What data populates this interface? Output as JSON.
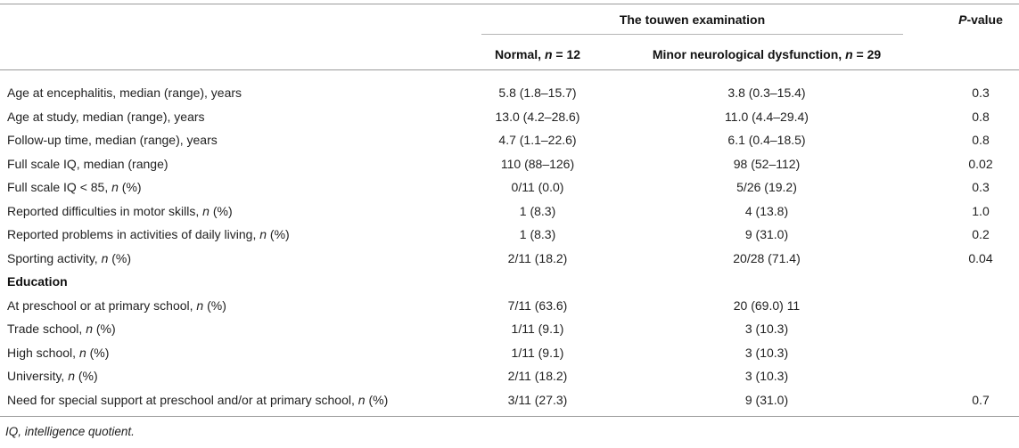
{
  "header": {
    "group_label": "The touwen examination",
    "pvalue_label": "P-value",
    "col_normal": "Normal, n = 12",
    "col_minor": "Minor neurological dysfunction, n = 29"
  },
  "rows": [
    {
      "label": "Age at encephalitis, median (range), years",
      "normal": "5.8 (1.8–15.7)",
      "minor": "3.8 (0.3–15.4)",
      "p": "0.3"
    },
    {
      "label": "Age at study, median (range), years",
      "normal": "13.0 (4.2–28.6)",
      "minor": "11.0 (4.4–29.4)",
      "p": "0.8"
    },
    {
      "label": "Follow-up time, median (range), years",
      "normal": "4.7 (1.1–22.6)",
      "minor": "6.1 (0.4–18.5)",
      "p": "0.8"
    },
    {
      "label": "Full scale IQ, median (range)",
      "normal": "110 (88–126)",
      "minor": "98 (52–112)",
      "p": "0.02"
    },
    {
      "label": "Full scale IQ < 85, n (%)",
      "normal": "0/11 (0.0)",
      "minor": "5/26 (19.2)",
      "p": "0.3"
    },
    {
      "label": "Reported difficulties in motor skills, n (%)",
      "normal": "1 (8.3)",
      "minor": "4 (13.8)",
      "p": "1.0"
    },
    {
      "label": "Reported problems in activities of daily living, n (%)",
      "normal": "1 (8.3)",
      "minor": "9 (31.0)",
      "p": "0.2"
    },
    {
      "label": "Sporting activity, n (%)",
      "normal": "2/11 (18.2)",
      "minor": "20/28 (71.4)",
      "p": "0.04"
    },
    {
      "label": "Education",
      "normal": "",
      "minor": "",
      "p": "",
      "bold": true
    },
    {
      "label": "At preschool or at primary school, n (%)",
      "normal": "7/11 (63.6)",
      "minor": "20 (69.0) 11",
      "p": ""
    },
    {
      "label": "Trade school, n (%)",
      "normal": "1/11 (9.1)",
      "minor": "3 (10.3)",
      "p": ""
    },
    {
      "label": "High school, n (%)",
      "normal": "1/11 (9.1)",
      "minor": "3 (10.3)",
      "p": ""
    },
    {
      "label": "University, n (%)",
      "normal": "2/11 (18.2)",
      "minor": "3 (10.3)",
      "p": ""
    },
    {
      "label": "Need for special support at preschool and/or at primary school, n (%)",
      "normal": "3/11 (27.3)",
      "minor": "9 (31.0)",
      "p": "0.7"
    }
  ],
  "footnote": "IQ, intelligence quotient."
}
